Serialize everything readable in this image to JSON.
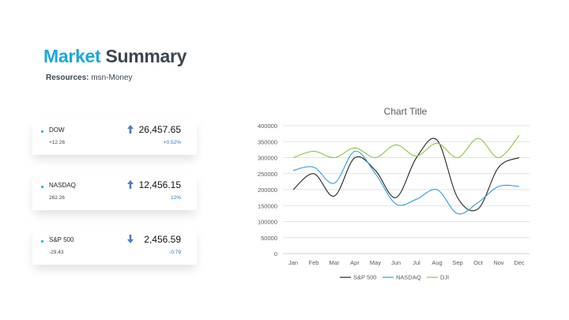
{
  "header": {
    "title_word1": "Market",
    "title_word2": "Summary",
    "resources_label": "Resources:",
    "resources_value": "msn-Money"
  },
  "cards": [
    {
      "name": "DOW",
      "change": "+12.26",
      "value": "26,457.65",
      "percent": "+0.52%",
      "direction": "up",
      "arrow_icon": "arrow-up-icon"
    },
    {
      "name": "NASDAQ",
      "change": "262.26",
      "value": "12,456.15",
      "percent": "12%",
      "direction": "up",
      "arrow_icon": "arrow-up-icon"
    },
    {
      "name": "S&P 500",
      "change": "-29.43",
      "value": "2,456.59",
      "percent": "-0.79",
      "direction": "down",
      "arrow_icon": "arrow-down-icon"
    }
  ],
  "colors": {
    "accent": "#1aa7e0",
    "arrow": "#4a7fc4",
    "percent": "#2b73c5"
  },
  "chart_data": {
    "type": "line",
    "title": "Chart Title",
    "categories": [
      "Jan",
      "Feb",
      "Mar",
      "Apr",
      "May",
      "Jun",
      "Jul",
      "Aug",
      "Sep",
      "Oct",
      "Nov",
      "Dec"
    ],
    "ylim": [
      0,
      400000
    ],
    "yticks": [
      0,
      50000,
      100000,
      150000,
      200000,
      250000,
      300000,
      350000,
      400000
    ],
    "grid": true,
    "legend_position": "bottom",
    "series": [
      {
        "name": "S&P 500",
        "color": "#262626",
        "values": [
          200000,
          250000,
          180000,
          300000,
          260000,
          175000,
          300000,
          355000,
          175000,
          140000,
          270000,
          300000
        ]
      },
      {
        "name": "NASDAQ",
        "color": "#2aa0dc",
        "values": [
          260000,
          270000,
          220000,
          320000,
          250000,
          155000,
          170000,
          200000,
          125000,
          160000,
          210000,
          210000
        ]
      },
      {
        "name": "DJI",
        "color": "#8cc63f",
        "values": [
          300000,
          320000,
          300000,
          330000,
          300000,
          340000,
          305000,
          345000,
          300000,
          360000,
          300000,
          370000
        ]
      }
    ]
  }
}
